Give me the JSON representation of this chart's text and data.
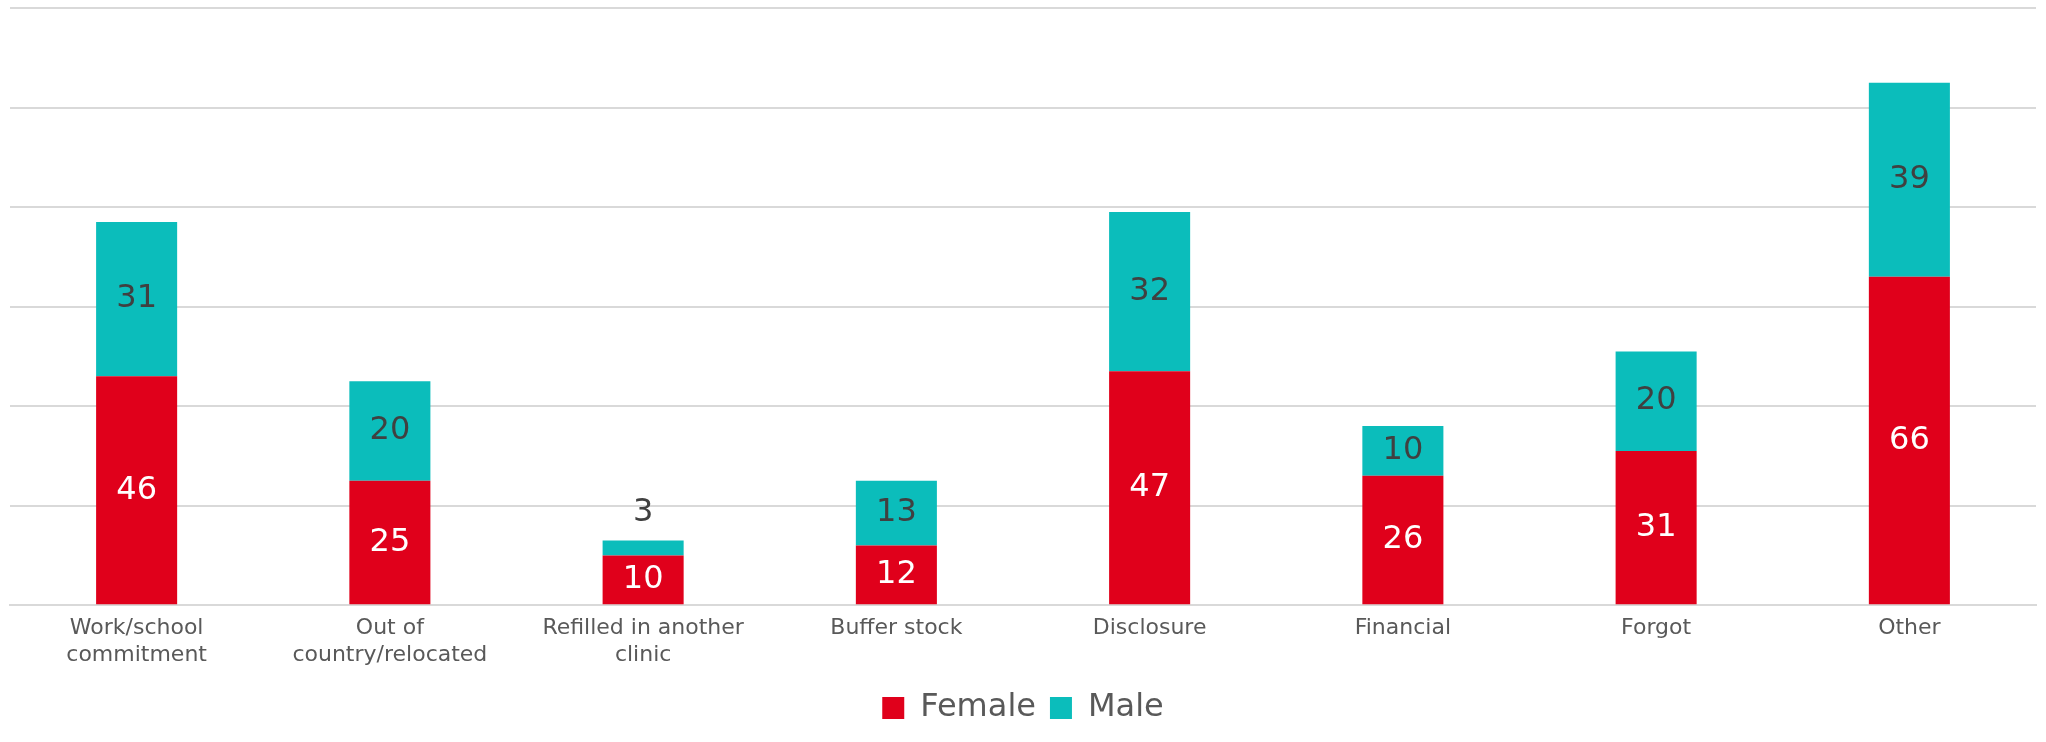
{
  "chart_data": {
    "type": "bar",
    "stacked": true,
    "categories": [
      "Work/school commitment",
      "Out of country/relocated",
      "Refilled in another clinic",
      "Buffer stock",
      "Disclosure",
      "Financial",
      "Forgot",
      "Other"
    ],
    "series": [
      {
        "name": "Female",
        "color": "#e0001b",
        "values": [
          46,
          25,
          10,
          12,
          47,
          26,
          31,
          66
        ]
      },
      {
        "name": "Male",
        "color": "#0bbdbb",
        "values": [
          31,
          20,
          3,
          13,
          32,
          10,
          20,
          39
        ]
      }
    ],
    "ylim": [
      0,
      120
    ],
    "yticks": [
      {
        "value": 0,
        "label": null
      },
      {
        "value": 20,
        "label": null
      },
      {
        "value": 40,
        "label": null
      },
      {
        "value": 60,
        "label": null
      },
      {
        "value": 80,
        "label": null
      },
      {
        "value": 100,
        "label": null
      },
      {
        "value": 120,
        "label": null
      }
    ],
    "tick_labels": "x",
    "grid": "y",
    "legend": "bottom",
    "data_labels": true
  }
}
